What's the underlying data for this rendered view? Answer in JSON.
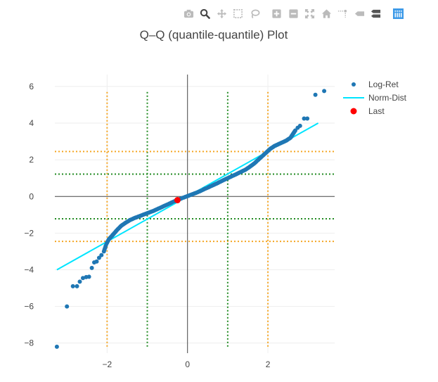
{
  "modebar": {
    "buttons": [
      {
        "name": "camera-icon",
        "color": "#bbbbbb"
      },
      {
        "name": "zoom-icon",
        "color": "#444444"
      },
      {
        "name": "pan-icon",
        "color": "#bbbbbb"
      },
      {
        "name": "box-select-icon",
        "color": "#bbbbbb"
      },
      {
        "name": "lasso-icon",
        "color": "#bbbbbb"
      },
      {
        "name": "zoom-in-icon",
        "color": "#bbbbbb"
      },
      {
        "name": "zoom-out-icon",
        "color": "#bbbbbb"
      },
      {
        "name": "autoscale-icon",
        "color": "#bbbbbb"
      },
      {
        "name": "reset-axes-icon",
        "color": "#bbbbbb"
      },
      {
        "name": "spike-lines-icon",
        "color": "#bbbbbb"
      },
      {
        "name": "hover-closest-icon",
        "color": "#bbbbbb"
      },
      {
        "name": "hover-compare-icon",
        "color": "#555555"
      },
      {
        "name": "plotly-logo-icon",
        "color": "#3d9ae8"
      }
    ]
  },
  "chart_data": {
    "type": "scatter",
    "title": "Q–Q (quantile-quantile) Plot",
    "xlabel": "",
    "ylabel": "",
    "xlim": [
      -3.3,
      3.66
    ],
    "ylim": [
      -8.55,
      6.65
    ],
    "x_ticks": [
      -2,
      0,
      2
    ],
    "y_ticks": [
      -8,
      -6,
      -4,
      -2,
      0,
      2,
      4,
      6
    ],
    "grid": true,
    "legend_position": "top-right",
    "series": [
      {
        "name": "Log-Ret",
        "mode": "markers",
        "color": "#1f77b4",
        "points": [
          [
            -3.25,
            -8.2
          ],
          [
            -3.0,
            -6.0
          ],
          [
            -2.85,
            -4.9
          ],
          [
            -2.75,
            -4.9
          ],
          [
            -2.68,
            -4.65
          ],
          [
            -2.6,
            -4.45
          ],
          [
            -2.52,
            -4.4
          ],
          [
            -2.45,
            -4.38
          ],
          [
            -2.38,
            -3.9
          ],
          [
            -2.32,
            -3.6
          ],
          [
            -2.26,
            -3.55
          ],
          [
            -2.2,
            -3.35
          ],
          [
            -2.14,
            -3.2
          ],
          [
            -2.08,
            -3.0
          ],
          [
            -2.02,
            -2.6
          ],
          [
            -1.96,
            -2.35
          ],
          [
            -1.9,
            -2.2
          ],
          [
            -1.84,
            -2.05
          ],
          [
            -1.76,
            -1.85
          ],
          [
            -1.66,
            -1.62
          ],
          [
            -1.55,
            -1.45
          ],
          [
            -1.44,
            -1.3
          ],
          [
            -1.32,
            -1.18
          ],
          [
            -1.2,
            -1.08
          ],
          [
            -1.08,
            -0.98
          ],
          [
            -0.96,
            -0.88
          ],
          [
            -0.84,
            -0.78
          ],
          [
            -0.72,
            -0.66
          ],
          [
            -0.6,
            -0.54
          ],
          [
            -0.48,
            -0.42
          ],
          [
            -0.36,
            -0.3
          ],
          [
            -0.24,
            -0.18
          ],
          [
            -0.12,
            -0.08
          ],
          [
            0.0,
            0.02
          ],
          [
            0.12,
            0.12
          ],
          [
            0.24,
            0.22
          ],
          [
            0.36,
            0.34
          ],
          [
            0.48,
            0.46
          ],
          [
            0.6,
            0.58
          ],
          [
            0.72,
            0.7
          ],
          [
            0.84,
            0.83
          ],
          [
            0.96,
            0.96
          ],
          [
            1.08,
            1.08
          ],
          [
            1.2,
            1.2
          ],
          [
            1.32,
            1.33
          ],
          [
            1.44,
            1.46
          ],
          [
            1.55,
            1.62
          ],
          [
            1.66,
            1.8
          ],
          [
            1.76,
            2.0
          ],
          [
            1.86,
            2.2
          ],
          [
            1.96,
            2.4
          ],
          [
            2.06,
            2.6
          ],
          [
            2.16,
            2.75
          ],
          [
            2.26,
            2.85
          ],
          [
            2.36,
            2.95
          ],
          [
            2.46,
            3.05
          ],
          [
            2.56,
            3.2
          ],
          [
            2.62,
            3.4
          ],
          [
            2.68,
            3.6
          ],
          [
            2.74,
            3.75
          ],
          [
            2.8,
            3.85
          ],
          [
            2.9,
            4.25
          ],
          [
            2.98,
            4.25
          ],
          [
            3.18,
            5.55
          ],
          [
            3.4,
            5.75
          ]
        ]
      },
      {
        "name": "Norm-Dist",
        "mode": "lines",
        "color": "#00e5ff",
        "points": [
          [
            -3.25,
            -4.0
          ],
          [
            3.25,
            4.0
          ]
        ]
      },
      {
        "name": "Last",
        "mode": "markers",
        "color": "#ff0000",
        "points": [
          [
            -0.25,
            -0.2
          ]
        ]
      }
    ],
    "reference_lines": [
      {
        "orientation": "vertical",
        "value": -2,
        "color": "#f5a623"
      },
      {
        "orientation": "vertical",
        "value": 2,
        "color": "#f5a623"
      },
      {
        "orientation": "vertical",
        "value": -1,
        "color": "#228b22"
      },
      {
        "orientation": "vertical",
        "value": 1,
        "color": "#228b22"
      },
      {
        "orientation": "horizontal",
        "value": 2.45,
        "color": "#f5a623"
      },
      {
        "orientation": "horizontal",
        "value": -2.45,
        "color": "#f5a623"
      },
      {
        "orientation": "horizontal",
        "value": 1.22,
        "color": "#228b22"
      },
      {
        "orientation": "horizontal",
        "value": -1.22,
        "color": "#228b22"
      }
    ]
  }
}
